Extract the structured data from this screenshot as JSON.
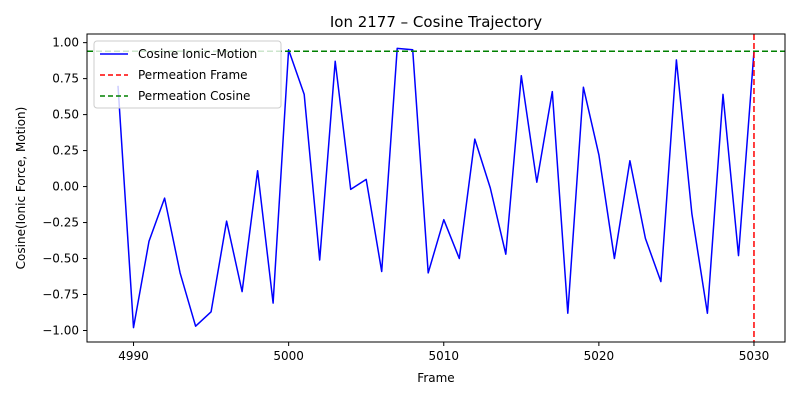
{
  "chart_data": {
    "type": "line",
    "title": "Ion 2177 – Cosine Trajectory",
    "xlabel": "Frame",
    "ylabel": "Cosine(Ionic Force, Motion)",
    "xlim": [
      4987,
      5032
    ],
    "ylim": [
      -1.08,
      1.06
    ],
    "xticks": [
      4990,
      5000,
      5010,
      5020,
      5030
    ],
    "yticks": [
      -1.0,
      -0.75,
      -0.5,
      -0.25,
      0.0,
      0.25,
      0.5,
      0.75,
      1.0
    ],
    "ytick_labels": [
      "−1.00",
      "−0.75",
      "−0.50",
      "−0.25",
      "0.00",
      "0.25",
      "0.50",
      "0.75",
      "1.00"
    ],
    "grid": false,
    "legend_position": "top-left",
    "series": [
      {
        "name": "Cosine Ionic–Motion",
        "color": "#0000ff",
        "style": "solid",
        "x": [
          4989,
          4990,
          4991,
          4992,
          4993,
          4994,
          4995,
          4996,
          4997,
          4998,
          4999,
          5000,
          5001,
          5002,
          5003,
          5004,
          5005,
          5006,
          5007,
          5008,
          5009,
          5010,
          5011,
          5012,
          5013,
          5014,
          5015,
          5016,
          5017,
          5018,
          5019,
          5020,
          5021,
          5022,
          5023,
          5024,
          5025,
          5026,
          5027,
          5028,
          5029,
          5030
        ],
        "y": [
          0.7,
          -0.98,
          -0.38,
          -0.08,
          -0.6,
          -0.97,
          -0.87,
          -0.24,
          -0.73,
          0.11,
          -0.81,
          0.95,
          0.64,
          -0.51,
          0.87,
          -0.02,
          0.05,
          -0.59,
          0.96,
          0.95,
          -0.6,
          -0.23,
          -0.5,
          0.33,
          -0.01,
          -0.47,
          0.77,
          0.03,
          0.66,
          -0.88,
          0.69,
          0.22,
          -0.5,
          0.18,
          -0.36,
          -0.66,
          0.88,
          -0.19,
          -0.88,
          0.64,
          -0.48,
          0.94
        ]
      },
      {
        "name": "Permeation Frame",
        "color": "#ff0000",
        "style": "dashed",
        "orientation": "vertical",
        "value": 5030
      },
      {
        "name": "Permeation Cosine",
        "color": "#008000",
        "style": "dashed",
        "orientation": "horizontal",
        "value": 0.94
      }
    ]
  }
}
